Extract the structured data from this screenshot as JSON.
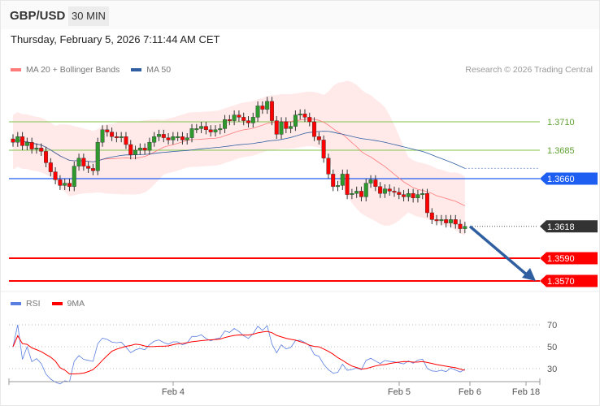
{
  "header": {
    "symbol": "GBP/USD",
    "timeframe": "30 MIN"
  },
  "datetime": "Thursday, February 5, 2026 7:11:44 AM CET",
  "legend": {
    "ma20": "MA 20 + Bollinger Bands",
    "ma20_color": "#ff7b7b",
    "ma50": "MA 50",
    "ma50_color": "#2f5fa0",
    "credit": "Research © 2026 Trading Central"
  },
  "rsi_legend": {
    "rsi": "RSI",
    "rsi_color": "#5b7fe0",
    "ma": "9MA",
    "ma_color": "#ff0000"
  },
  "chart_data": {
    "type": "candlestick",
    "interval": "30 min",
    "closes": [
      1.3692,
      1.3697,
      1.3689,
      1.3692,
      1.3686,
      1.3687,
      1.3684,
      1.3674,
      1.3666,
      1.3659,
      1.3654,
      1.3656,
      1.3653,
      1.3671,
      1.3678,
      1.3671,
      1.3669,
      1.3667,
      1.3692,
      1.3703,
      1.3701,
      1.3697,
      1.3696,
      1.3697,
      1.369,
      1.3681,
      1.3685,
      1.3687,
      1.3685,
      1.3692,
      1.3697,
      1.3699,
      1.3696,
      1.3694,
      1.3697,
      1.3697,
      1.3694,
      1.3696,
      1.3704,
      1.3704,
      1.3706,
      1.3703,
      1.3701,
      1.3703,
      1.3704,
      1.3712,
      1.3711,
      1.3716,
      1.3714,
      1.3711,
      1.3709,
      1.3714,
      1.3724,
      1.3721,
      1.3728,
      1.3711,
      1.3699,
      1.371,
      1.3704,
      1.3706,
      1.3716,
      1.3717,
      1.3714,
      1.371,
      1.3697,
      1.3694,
      1.3678,
      1.3664,
      1.3653,
      1.3654,
      1.3664,
      1.3646,
      1.3647,
      1.3649,
      1.3644,
      1.3656,
      1.3659,
      1.3653,
      1.3647,
      1.3651,
      1.3649,
      1.3648,
      1.3646,
      1.3644,
      1.3647,
      1.3643,
      1.3646,
      1.3647,
      1.363,
      1.3624,
      1.3623,
      1.3624,
      1.3621,
      1.3624,
      1.362,
      1.3616,
      1.3618
    ],
    "x_ticks": [
      "Feb 4",
      "Feb 5",
      "Feb 6",
      "Feb 18"
    ],
    "price_levels": [
      {
        "value": "1.3710",
        "kind": "resistance",
        "color": "#9acd6e",
        "text_color": "#5fa030"
      },
      {
        "value": "1.3685",
        "kind": "resistance",
        "color": "#9acd6e",
        "text_color": "#5fa030"
      },
      {
        "value": "1.3660",
        "kind": "pivot",
        "color": "#1e5ef0"
      },
      {
        "value": "1.3618",
        "kind": "last",
        "color": "#333333"
      },
      {
        "value": "1.3590",
        "kind": "support",
        "color": "#ff0000"
      },
      {
        "value": "1.3570",
        "kind": "support",
        "color": "#ff0000"
      }
    ],
    "arrow": {
      "from": 1.3618,
      "to": 1.357,
      "direction": "down",
      "color": "#2f5fa0"
    },
    "rsi": {
      "levels": [
        "70",
        "50",
        "30"
      ]
    },
    "colors": {
      "up": "#2e9a2e",
      "down": "#ff0000",
      "band": "#ffe4e4"
    }
  }
}
